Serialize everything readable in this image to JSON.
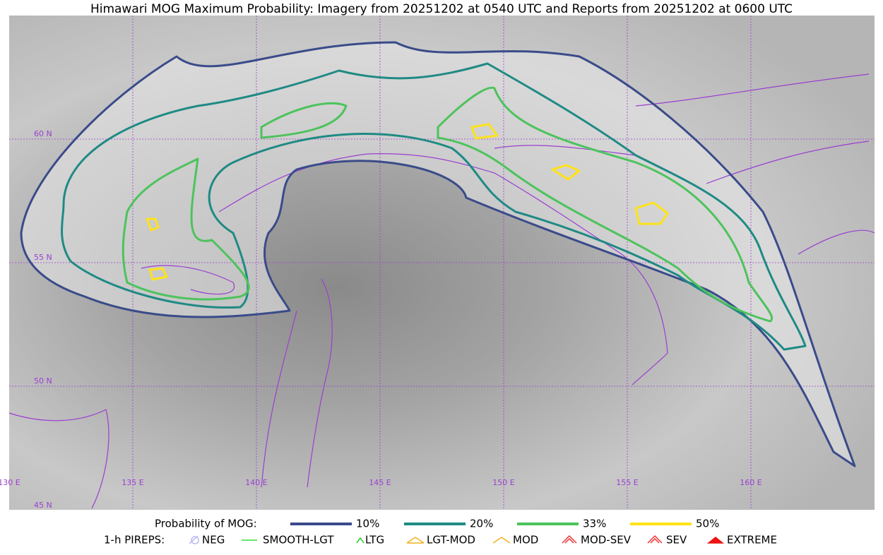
{
  "header": {
    "title": "Himawari MOG Maximum Probability: Imagery from 20251202 at 0540 UTC and Reports from 20251202 at 0600 UTC"
  },
  "map": {
    "lat_labels": [
      "60 N",
      "55 N",
      "50 N",
      "45 N"
    ],
    "lon_labels": [
      "130 E",
      "135 E",
      "140 E",
      "145 E",
      "150 E",
      "155 E",
      "160 E"
    ]
  },
  "legend": {
    "probability": {
      "title": "Probability of MOG:",
      "items": [
        {
          "label": "10%",
          "color": "#3a4b8a"
        },
        {
          "label": "20%",
          "color": "#1f8a84"
        },
        {
          "label": "33%",
          "color": "#4dc35c"
        },
        {
          "label": "50%",
          "color": "#fde31a"
        }
      ]
    },
    "pireps": {
      "title": "1-h PIREPS:",
      "items": [
        {
          "label": "NEG",
          "color": "#b8b8f0"
        },
        {
          "label": "SMOOTH-LGT",
          "color": "#33dd33"
        },
        {
          "label": "LTG",
          "color": "#22cc22"
        },
        {
          "label": "LGT-MOD",
          "color": "#f0b020"
        },
        {
          "label": "MOD",
          "color": "#f0b020"
        },
        {
          "label": "MOD-SEV",
          "color": "#ee3333"
        },
        {
          "label": "SEV",
          "color": "#ee3333"
        },
        {
          "label": "EXTREME",
          "color": "#ee1111"
        }
      ]
    }
  }
}
